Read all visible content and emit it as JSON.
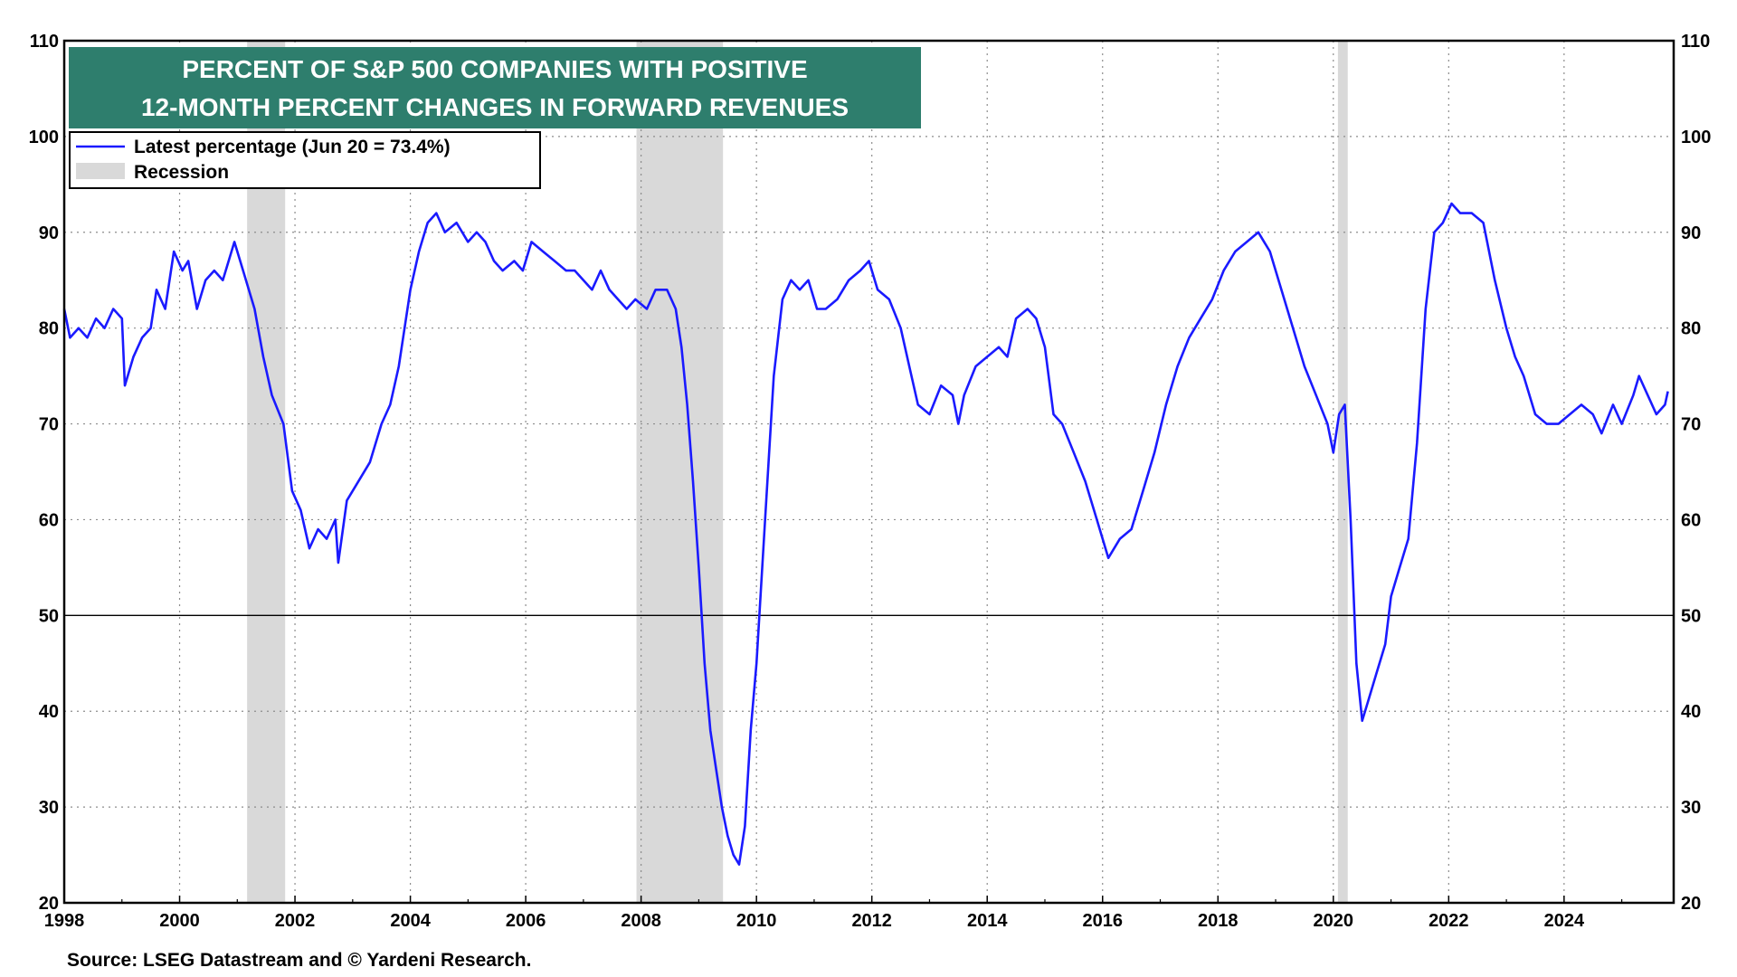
{
  "chart_data": {
    "type": "line",
    "title_lines": [
      "PERCENT OF S&P 500 COMPANIES WITH POSITIVE",
      "12-MONTH PERCENT CHANGES IN FORWARD REVENUES"
    ],
    "title_bg_color": "#2e7e6d",
    "legend": {
      "placement": "top-left",
      "entries": [
        {
          "label": "Latest percentage (Jun 20 = 73.4%)",
          "kind": "line",
          "color": "#1a1aff"
        },
        {
          "label": "Recession",
          "kind": "band",
          "color": "#d9d9d9"
        }
      ]
    },
    "source": "Source: LSEG Datastream and © Yardeni Research.",
    "xlim": [
      1998,
      2025.9
    ],
    "ylim": [
      20,
      110
    ],
    "x_ticks": [
      1998,
      2000,
      2002,
      2004,
      2006,
      2008,
      2010,
      2012,
      2014,
      2016,
      2018,
      2020,
      2022,
      2024
    ],
    "y_ticks": [
      20,
      30,
      40,
      50,
      60,
      70,
      80,
      90,
      100,
      110
    ],
    "y_axis_both_sides": true,
    "reference_line": 50,
    "grid": "dotted",
    "recessions": [
      [
        2001.17,
        2001.83
      ],
      [
        2007.92,
        2009.42
      ],
      [
        2020.08,
        2020.25
      ]
    ],
    "series": [
      {
        "color": "#1a1aff",
        "points": [
          [
            1998.0,
            82
          ],
          [
            1998.1,
            79
          ],
          [
            1998.25,
            80
          ],
          [
            1998.4,
            79
          ],
          [
            1998.55,
            81
          ],
          [
            1998.7,
            80
          ],
          [
            1998.85,
            82
          ],
          [
            1999.0,
            81
          ],
          [
            1999.05,
            74
          ],
          [
            1999.2,
            77
          ],
          [
            1999.35,
            79
          ],
          [
            1999.5,
            80
          ],
          [
            1999.6,
            84
          ],
          [
            1999.75,
            82
          ],
          [
            1999.9,
            88
          ],
          [
            2000.05,
            86
          ],
          [
            2000.15,
            87
          ],
          [
            2000.3,
            82
          ],
          [
            2000.45,
            85
          ],
          [
            2000.6,
            86
          ],
          [
            2000.75,
            85
          ],
          [
            2000.95,
            89
          ],
          [
            2001.1,
            86
          ],
          [
            2001.3,
            82
          ],
          [
            2001.45,
            77
          ],
          [
            2001.6,
            73
          ],
          [
            2001.8,
            70
          ],
          [
            2001.95,
            63
          ],
          [
            2002.1,
            61
          ],
          [
            2002.25,
            57
          ],
          [
            2002.4,
            59
          ],
          [
            2002.55,
            58
          ],
          [
            2002.7,
            60
          ],
          [
            2002.75,
            55.5
          ],
          [
            2002.9,
            62
          ],
          [
            2003.1,
            64
          ],
          [
            2003.3,
            66
          ],
          [
            2003.5,
            70
          ],
          [
            2003.65,
            72
          ],
          [
            2003.8,
            76
          ],
          [
            2004.0,
            84
          ],
          [
            2004.15,
            88
          ],
          [
            2004.3,
            91
          ],
          [
            2004.45,
            92
          ],
          [
            2004.6,
            90
          ],
          [
            2004.8,
            91
          ],
          [
            2005.0,
            89
          ],
          [
            2005.15,
            90
          ],
          [
            2005.3,
            89
          ],
          [
            2005.45,
            87
          ],
          [
            2005.6,
            86
          ],
          [
            2005.8,
            87
          ],
          [
            2005.95,
            86
          ],
          [
            2006.1,
            89
          ],
          [
            2006.3,
            88
          ],
          [
            2006.5,
            87
          ],
          [
            2006.7,
            86
          ],
          [
            2006.85,
            86
          ],
          [
            2007.0,
            85
          ],
          [
            2007.15,
            84
          ],
          [
            2007.3,
            86
          ],
          [
            2007.45,
            84
          ],
          [
            2007.6,
            83
          ],
          [
            2007.75,
            82
          ],
          [
            2007.9,
            83
          ],
          [
            2008.1,
            82
          ],
          [
            2008.25,
            84
          ],
          [
            2008.45,
            84
          ],
          [
            2008.6,
            82
          ],
          [
            2008.7,
            78
          ],
          [
            2008.8,
            72
          ],
          [
            2008.9,
            64
          ],
          [
            2009.0,
            55
          ],
          [
            2009.1,
            45
          ],
          [
            2009.2,
            38
          ],
          [
            2009.3,
            34
          ],
          [
            2009.4,
            30
          ],
          [
            2009.5,
            27
          ],
          [
            2009.6,
            25
          ],
          [
            2009.7,
            24
          ],
          [
            2009.8,
            28
          ],
          [
            2009.9,
            38
          ],
          [
            2010.0,
            45
          ],
          [
            2010.15,
            60
          ],
          [
            2010.3,
            75
          ],
          [
            2010.45,
            83
          ],
          [
            2010.6,
            85
          ],
          [
            2010.75,
            84
          ],
          [
            2010.9,
            85
          ],
          [
            2011.05,
            82
          ],
          [
            2011.2,
            82
          ],
          [
            2011.4,
            83
          ],
          [
            2011.6,
            85
          ],
          [
            2011.8,
            86
          ],
          [
            2011.95,
            87
          ],
          [
            2012.1,
            84
          ],
          [
            2012.3,
            83
          ],
          [
            2012.5,
            80
          ],
          [
            2012.65,
            76
          ],
          [
            2012.8,
            72
          ],
          [
            2013.0,
            71
          ],
          [
            2013.2,
            74
          ],
          [
            2013.4,
            73
          ],
          [
            2013.5,
            70
          ],
          [
            2013.6,
            73
          ],
          [
            2013.8,
            76
          ],
          [
            2014.0,
            77
          ],
          [
            2014.2,
            78
          ],
          [
            2014.35,
            77
          ],
          [
            2014.5,
            81
          ],
          [
            2014.7,
            82
          ],
          [
            2014.85,
            81
          ],
          [
            2015.0,
            78
          ],
          [
            2015.15,
            71
          ],
          [
            2015.3,
            70
          ],
          [
            2015.5,
            67
          ],
          [
            2015.7,
            64
          ],
          [
            2015.9,
            60
          ],
          [
            2016.1,
            56
          ],
          [
            2016.3,
            58
          ],
          [
            2016.5,
            59
          ],
          [
            2016.7,
            63
          ],
          [
            2016.9,
            67
          ],
          [
            2017.1,
            72
          ],
          [
            2017.3,
            76
          ],
          [
            2017.5,
            79
          ],
          [
            2017.7,
            81
          ],
          [
            2017.9,
            83
          ],
          [
            2018.1,
            86
          ],
          [
            2018.3,
            88
          ],
          [
            2018.5,
            89
          ],
          [
            2018.7,
            90
          ],
          [
            2018.9,
            88
          ],
          [
            2019.1,
            84
          ],
          [
            2019.3,
            80
          ],
          [
            2019.5,
            76
          ],
          [
            2019.7,
            73
          ],
          [
            2019.9,
            70
          ],
          [
            2020.0,
            67
          ],
          [
            2020.1,
            71
          ],
          [
            2020.2,
            72
          ],
          [
            2020.3,
            60
          ],
          [
            2020.4,
            45
          ],
          [
            2020.5,
            39
          ],
          [
            2020.6,
            41
          ],
          [
            2020.75,
            44
          ],
          [
            2020.9,
            47
          ],
          [
            2021.0,
            52
          ],
          [
            2021.15,
            55
          ],
          [
            2021.3,
            58
          ],
          [
            2021.45,
            68
          ],
          [
            2021.6,
            82
          ],
          [
            2021.75,
            90
          ],
          [
            2021.9,
            91
          ],
          [
            2022.05,
            93
          ],
          [
            2022.2,
            92
          ],
          [
            2022.4,
            92
          ],
          [
            2022.6,
            91
          ],
          [
            2022.8,
            85
          ],
          [
            2023.0,
            80
          ],
          [
            2023.15,
            77
          ],
          [
            2023.3,
            75
          ],
          [
            2023.5,
            71
          ],
          [
            2023.7,
            70
          ],
          [
            2023.9,
            70
          ],
          [
            2024.1,
            71
          ],
          [
            2024.3,
            72
          ],
          [
            2024.5,
            71
          ],
          [
            2024.65,
            69
          ],
          [
            2024.85,
            72
          ],
          [
            2025.0,
            70
          ],
          [
            2025.2,
            73
          ],
          [
            2025.3,
            75
          ],
          [
            2025.45,
            73
          ],
          [
            2025.6,
            71
          ],
          [
            2025.75,
            72
          ],
          [
            2025.8,
            73.4
          ]
        ]
      }
    ]
  }
}
